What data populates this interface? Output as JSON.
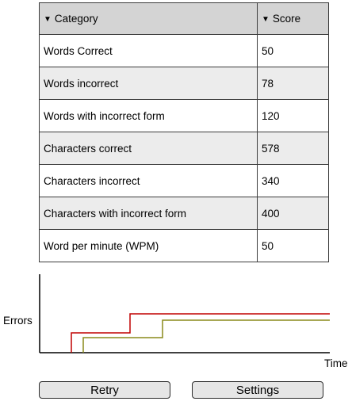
{
  "table": {
    "headers": {
      "category": "Category",
      "score": "Score"
    },
    "rows": [
      {
        "category": "Words Correct",
        "score": "50"
      },
      {
        "category": "Words incorrect",
        "score": "78"
      },
      {
        "category": "Words with incorrect form",
        "score": "120"
      },
      {
        "category": "Characters correct",
        "score": "578"
      },
      {
        "category": "Characters incorrect",
        "score": "340"
      },
      {
        "category": "Characters with incorrect form",
        "score": "400"
      },
      {
        "category": "Word per minute (WPM)",
        "score": "50"
      }
    ]
  },
  "chart": {
    "ylabel": "Errors",
    "xlabel": "Time",
    "series_colors": [
      "#c00000",
      "#8a8a1a"
    ]
  },
  "buttons": {
    "retry": "Retry",
    "settings": "Settings"
  }
}
